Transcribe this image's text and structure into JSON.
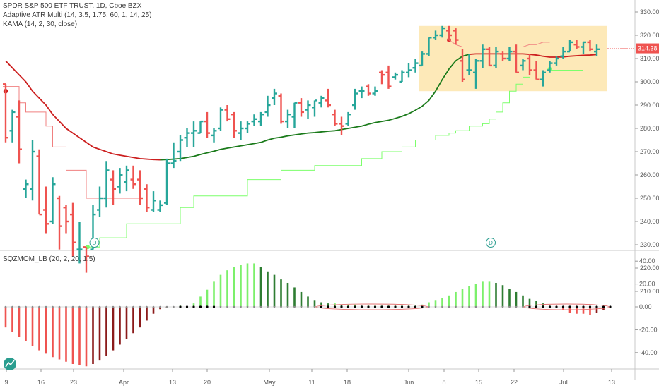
{
  "legend": {
    "symbol_line": "SPDR S&P 500 ETF TRUST, 1D, Cboe BZX",
    "atr_line": "Adaptive ATR Multi (14, 3.5, 1.75, 60, 1, 14, 25)",
    "kama_line": "KAMA (14, 2, 30, close)",
    "sqz_line": "SQZMOM_LB (20, 2, 20, 1.5)"
  },
  "last_price_label": "314.38",
  "dividend_marker": "D",
  "colors": {
    "up": "#26a69a",
    "down": "#ef5350",
    "kama": "#cc1f1f",
    "kama_trend": "#1a7a1a",
    "stop_down": "#f08080",
    "stop_up": "#7cff6b",
    "highlight": "#fde9b8",
    "hist_up_strong": "#7cf06b",
    "hist_up_weak": "#2e7d32",
    "hist_down_strong": "#ef5350",
    "hist_down_weak": "#8b1a1a"
  },
  "chart_data": [
    {
      "type": "ohlc",
      "title": "SPDR S&P 500 ETF TRUST, 1D, Cboe BZX",
      "price_axis": {
        "ticks": [
          210,
          220,
          230,
          240,
          250,
          260,
          270,
          280,
          290,
          300,
          310,
          320,
          330
        ],
        "tick_labels": [
          "210.00",
          "220.00",
          "230.00",
          "240.00",
          "250.00",
          "260.00",
          "270.00",
          "280.00",
          "290.00",
          "300.00",
          "310.00",
          "320.00",
          "330.00"
        ],
        "ylim": [
          207,
          332
        ]
      },
      "time_axis": {
        "labels": [
          "9",
          "16",
          "23",
          "Apr",
          "13",
          "20",
          "May",
          "11",
          "18",
          "Jun",
          "8",
          "15",
          "22",
          "Jul",
          "13"
        ]
      },
      "bars": [
        {
          "o": 299,
          "h": 299,
          "l": 274,
          "c": 276
        },
        {
          "o": 279,
          "h": 288,
          "l": 274,
          "c": 287
        },
        {
          "o": 285,
          "h": 292,
          "l": 265,
          "c": 271
        },
        {
          "o": 254,
          "h": 258,
          "l": 250,
          "c": 256
        },
        {
          "o": 254,
          "h": 275,
          "l": 249,
          "c": 270
        },
        {
          "o": 268,
          "h": 271,
          "l": 243,
          "c": 243
        },
        {
          "o": 245,
          "h": 255,
          "l": 235,
          "c": 239
        },
        {
          "o": 240,
          "h": 259,
          "l": 239,
          "c": 256
        },
        {
          "o": 250,
          "h": 251,
          "l": 228,
          "c": 238
        },
        {
          "o": 246,
          "h": 247,
          "l": 235,
          "c": 240
        },
        {
          "o": 243,
          "h": 248,
          "l": 225,
          "c": 231
        },
        {
          "o": 228,
          "h": 240,
          "l": 222,
          "c": 228
        },
        {
          "o": 229,
          "h": 229,
          "l": 218,
          "c": 225
        },
        {
          "o": 228,
          "h": 247,
          "l": 228,
          "c": 243
        },
        {
          "o": 245,
          "h": 255,
          "l": 242,
          "c": 250
        },
        {
          "o": 250,
          "h": 266,
          "l": 246,
          "c": 262
        },
        {
          "o": 258,
          "h": 262,
          "l": 247,
          "c": 254
        },
        {
          "o": 255,
          "h": 263,
          "l": 252,
          "c": 260
        },
        {
          "o": 257,
          "h": 264,
          "l": 253,
          "c": 262
        },
        {
          "o": 258,
          "h": 264,
          "l": 254,
          "c": 256
        },
        {
          "o": 258,
          "h": 262,
          "l": 247,
          "c": 250
        },
        {
          "o": 254,
          "h": 256,
          "l": 244,
          "c": 246
        },
        {
          "o": 245,
          "h": 253,
          "l": 244,
          "c": 249
        },
        {
          "o": 245,
          "h": 249,
          "l": 244,
          "c": 247
        },
        {
          "o": 248,
          "h": 267,
          "l": 247,
          "c": 265
        },
        {
          "o": 265,
          "h": 274,
          "l": 263,
          "c": 266
        },
        {
          "o": 270,
          "h": 277,
          "l": 266,
          "c": 275
        },
        {
          "o": 276,
          "h": 280,
          "l": 272,
          "c": 278
        },
        {
          "o": 278,
          "h": 283,
          "l": 272,
          "c": 279
        },
        {
          "o": 278,
          "h": 283,
          "l": 278,
          "c": 283
        },
        {
          "o": 283,
          "h": 287,
          "l": 276,
          "c": 278
        },
        {
          "o": 277,
          "h": 280,
          "l": 274,
          "c": 279
        },
        {
          "o": 280,
          "h": 289,
          "l": 279,
          "c": 288
        },
        {
          "o": 288,
          "h": 290,
          "l": 283,
          "c": 284
        },
        {
          "o": 286,
          "h": 287,
          "l": 276,
          "c": 279
        },
        {
          "o": 278,
          "h": 283,
          "l": 275,
          "c": 280
        },
        {
          "o": 280,
          "h": 283,
          "l": 278,
          "c": 282
        },
        {
          "o": 283,
          "h": 286,
          "l": 281,
          "c": 284
        },
        {
          "o": 283,
          "h": 287,
          "l": 281,
          "c": 286
        },
        {
          "o": 287,
          "h": 294,
          "l": 285,
          "c": 290
        },
        {
          "o": 293,
          "h": 297,
          "l": 290,
          "c": 295
        },
        {
          "o": 294,
          "h": 295,
          "l": 282,
          "c": 283
        },
        {
          "o": 283,
          "h": 288,
          "l": 280,
          "c": 286
        },
        {
          "o": 285,
          "h": 291,
          "l": 280,
          "c": 291
        },
        {
          "o": 291,
          "h": 293,
          "l": 285,
          "c": 287
        },
        {
          "o": 288,
          "h": 292,
          "l": 284,
          "c": 290
        },
        {
          "o": 289,
          "h": 292,
          "l": 285,
          "c": 292
        },
        {
          "o": 291,
          "h": 294,
          "l": 289,
          "c": 293
        },
        {
          "o": 292,
          "h": 297,
          "l": 289,
          "c": 290
        },
        {
          "o": 286,
          "h": 288,
          "l": 281,
          "c": 282
        },
        {
          "o": 282,
          "h": 285,
          "l": 277,
          "c": 281
        },
        {
          "o": 282,
          "h": 287,
          "l": 281,
          "c": 286
        },
        {
          "o": 290,
          "h": 297,
          "l": 288,
          "c": 295
        },
        {
          "o": 296,
          "h": 298,
          "l": 293,
          "c": 296
        },
        {
          "o": 298,
          "h": 299,
          "l": 294,
          "c": 295
        },
        {
          "o": 295,
          "h": 298,
          "l": 294,
          "c": 296
        },
        {
          "o": 304,
          "h": 305,
          "l": 299,
          "c": 303
        },
        {
          "o": 304,
          "h": 307,
          "l": 297,
          "c": 298
        },
        {
          "o": 302,
          "h": 304,
          "l": 301,
          "c": 303
        },
        {
          "o": 300,
          "h": 305,
          "l": 300,
          "c": 304
        },
        {
          "o": 304,
          "h": 308,
          "l": 302,
          "c": 305
        },
        {
          "o": 306,
          "h": 310,
          "l": 304,
          "c": 308
        },
        {
          "o": 307,
          "h": 313,
          "l": 307,
          "c": 312
        },
        {
          "o": 312,
          "h": 319,
          "l": 311,
          "c": 319
        },
        {
          "o": 319,
          "h": 322,
          "l": 318,
          "c": 320
        },
        {
          "o": 320,
          "h": 324,
          "l": 319,
          "c": 323
        },
        {
          "o": 322,
          "h": 324,
          "l": 318,
          "c": 320
        },
        {
          "o": 322,
          "h": 323,
          "l": 316,
          "c": 318
        },
        {
          "o": 309,
          "h": 314,
          "l": 300,
          "c": 301
        },
        {
          "o": 305,
          "h": 312,
          "l": 303,
          "c": 305
        },
        {
          "o": 304,
          "h": 310,
          "l": 297,
          "c": 309
        },
        {
          "o": 309,
          "h": 316,
          "l": 306,
          "c": 314
        },
        {
          "o": 314,
          "h": 315,
          "l": 307,
          "c": 307
        },
        {
          "o": 307,
          "h": 315,
          "l": 306,
          "c": 313
        },
        {
          "o": 312,
          "h": 313,
          "l": 309,
          "c": 310
        },
        {
          "o": 310,
          "h": 315,
          "l": 309,
          "c": 313
        },
        {
          "o": 313,
          "h": 316,
          "l": 304,
          "c": 304
        },
        {
          "o": 307,
          "h": 310,
          "l": 305,
          "c": 309
        },
        {
          "o": 310,
          "h": 312,
          "l": 303,
          "c": 305
        },
        {
          "o": 305,
          "h": 309,
          "l": 301,
          "c": 301
        },
        {
          "o": 301,
          "h": 305,
          "l": 298,
          "c": 304
        },
        {
          "o": 305,
          "h": 309,
          "l": 304,
          "c": 308
        },
        {
          "o": 308,
          "h": 311,
          "l": 307,
          "c": 310
        },
        {
          "o": 311,
          "h": 315,
          "l": 310,
          "c": 313
        },
        {
          "o": 313,
          "h": 318,
          "l": 313,
          "c": 317
        },
        {
          "o": 316,
          "h": 318,
          "l": 314,
          "c": 315
        },
        {
          "o": 315,
          "h": 317,
          "l": 312,
          "c": 317
        },
        {
          "o": 317,
          "h": 318,
          "l": 313,
          "c": 314
        },
        {
          "o": 313,
          "h": 316,
          "l": 311,
          "c": 314
        }
      ],
      "kama": [
        309,
        306,
        303,
        300,
        296,
        293,
        290,
        286,
        283,
        280,
        278,
        276,
        274,
        272,
        271,
        270,
        269,
        268.5,
        268,
        267.5,
        267,
        266.8,
        266.6,
        266.5,
        266.6,
        266.8,
        267,
        267.5,
        268,
        268.8,
        269.5,
        270.2,
        271,
        271.5,
        272,
        272.5,
        273,
        273.5,
        274,
        275,
        275.8,
        276.2,
        276.8,
        277.2,
        277.6,
        278,
        278.2,
        278.5,
        278.8,
        279,
        279.5,
        280,
        280.5,
        281,
        281.8,
        282.5,
        283,
        283.5,
        284.3,
        285.2,
        286.3,
        287.8,
        289.5,
        292,
        296,
        301,
        305.5,
        309,
        311,
        311.8,
        312,
        312,
        312,
        312,
        312,
        312,
        312,
        312,
        311.8,
        311.5,
        311,
        310.6,
        310.6,
        310.7,
        311,
        311.2,
        311.4,
        311.5,
        311.7
      ],
      "kama_trend_start": 23,
      "kama_trend_end": 69,
      "atr_stop_down": {
        "start": 0,
        "values": [
          298,
          298,
          291,
          287,
          287,
          287,
          281,
          272,
          272,
          262,
          262,
          262,
          250,
          250,
          250,
          250,
          250,
          250,
          250,
          250
        ],
        "marker_value": 296
      },
      "atr_stop_up": {
        "start": 12,
        "values": [
          229,
          229,
          233,
          233,
          233,
          233,
          239,
          239,
          239,
          239,
          239,
          239,
          239,
          239,
          246,
          246,
          251,
          251,
          251,
          251,
          251,
          251,
          251,
          251,
          258,
          258,
          258,
          258,
          258,
          262,
          262,
          262,
          262,
          262,
          264,
          264,
          264,
          264,
          264,
          264,
          264,
          267,
          267,
          267,
          270,
          270,
          270,
          272,
          272,
          275,
          275,
          275,
          277,
          277,
          278,
          279,
          279,
          281,
          281,
          282,
          284,
          287,
          291,
          296,
          299,
          302
        ],
        "tail_start": 78,
        "tail_values": [
          305,
          305,
          305,
          305,
          305,
          305
        ],
        "tail_marker_value": 305.5
      },
      "highlight_zone": {
        "from_bar": 62,
        "to_bar": 89,
        "ymin": 296,
        "ymax": 324
      },
      "dividend_bars": [
        13,
        72
      ]
    },
    {
      "type": "histogram",
      "title": "SQZMOM_LB (20, 2, 20, 1.5)",
      "ylim": [
        -55,
        46
      ],
      "ticks": [
        -40,
        -20,
        0,
        20,
        40
      ],
      "tick_labels": [
        "-40.00",
        "-20.00",
        "0.00",
        "20.00",
        "40.00"
      ],
      "values": [
        -18,
        -22,
        -26,
        -30,
        -34,
        -38,
        -41,
        -44,
        -46,
        -48,
        -50,
        -51,
        -52,
        -50,
        -47,
        -43,
        -38,
        -33,
        -28,
        -23,
        -18,
        -12,
        -6,
        -2,
        -1,
        0,
        1,
        -1,
        3,
        9,
        15,
        22,
        28,
        32,
        35,
        37,
        38,
        38,
        35,
        31,
        28,
        24,
        21,
        17,
        13,
        9,
        6,
        4,
        3,
        3,
        2,
        2,
        2,
        1,
        1,
        1,
        1,
        1,
        1,
        1,
        1,
        1,
        2,
        4,
        6,
        8,
        10,
        13,
        16,
        18,
        20,
        22,
        22,
        21,
        19,
        16,
        13,
        10,
        7,
        5,
        3,
        1,
        -1,
        -3,
        -5,
        -6,
        -6,
        -7,
        -5,
        -3
      ],
      "squeeze": [
        "dot",
        "dot",
        "dot",
        "dot",
        "dot",
        "dot",
        "dot",
        "dot",
        "dot",
        "dot",
        "dot",
        "dot",
        "dot",
        "dot",
        "dot",
        "dot",
        "dot",
        "dot",
        "dot",
        "dot",
        "dot",
        "dot",
        "dot",
        "dot",
        "dot",
        "dot",
        "black",
        "black",
        "black",
        "black",
        "black",
        "black",
        "dot",
        "dot",
        "dot",
        "dot",
        "dot",
        "dot",
        "dot",
        "dot",
        "dot",
        "dot",
        "dot",
        "dot",
        "dot",
        "dot",
        "dot",
        "black",
        "black",
        "black",
        "black",
        "black",
        "black",
        "black",
        "black",
        "black",
        "black",
        "black",
        "black",
        "black",
        "black",
        "black",
        "black",
        "dot",
        "dot",
        "dot",
        "dot",
        "dot",
        "dot",
        "dot",
        "dot",
        "dot",
        "dot",
        "dot",
        "dot",
        "dot",
        "dot",
        "dot",
        "black",
        "black",
        "black",
        "black",
        "black",
        "black",
        "black",
        "black",
        "black",
        "black",
        "black",
        "black",
        "black"
      ]
    }
  ]
}
